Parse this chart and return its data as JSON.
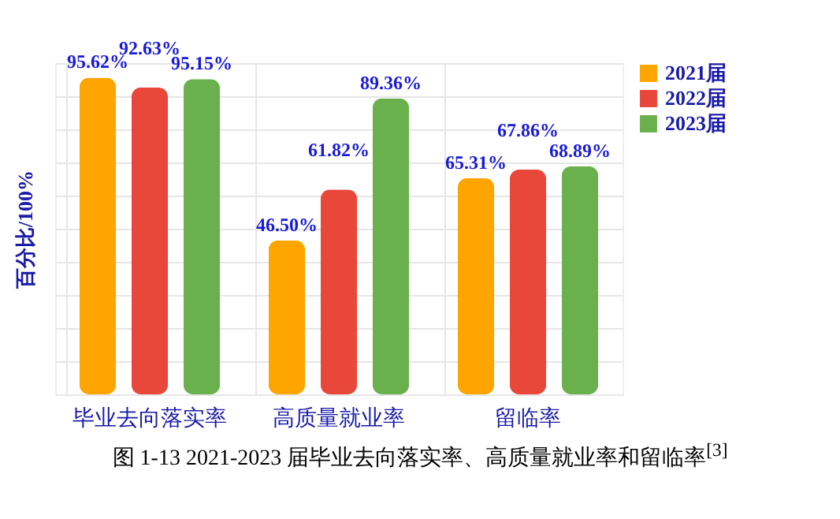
{
  "chart_data": {
    "type": "bar",
    "ylabel": "百分比/100%",
    "categories": [
      "毕业去向落实率",
      "高质量就业率",
      "留临率"
    ],
    "series": [
      {
        "name": "2021届",
        "color": "#ffa500",
        "values": [
          95.62,
          46.5,
          65.31
        ],
        "value_labels": [
          "95.62%",
          "46.50%",
          "65.31%"
        ]
      },
      {
        "name": "2022届",
        "color": "#e8473a",
        "values": [
          92.63,
          61.82,
          67.86
        ],
        "value_labels": [
          "92.63%",
          "61.82%",
          "67.86%"
        ]
      },
      {
        "name": "2023届",
        "color": "#6ab04c",
        "values": [
          95.15,
          89.36,
          68.89
        ],
        "value_labels": [
          "95.15%",
          "89.36%",
          "68.89%"
        ]
      }
    ],
    "ylim": [
      0,
      100
    ],
    "yticks": [
      {
        "value": 0,
        "label": null
      },
      {
        "value": 10,
        "label": null
      },
      {
        "value": 20,
        "label": null
      },
      {
        "value": 30,
        "label": null
      },
      {
        "value": 40,
        "label": null
      },
      {
        "value": 50,
        "label": null
      },
      {
        "value": 60,
        "label": null
      },
      {
        "value": 70,
        "label": null
      },
      {
        "value": 80,
        "label": null
      },
      {
        "value": 90,
        "label": null
      },
      {
        "value": 100,
        "label": null
      }
    ],
    "grid": true,
    "legend": "right",
    "annotations": [
      "图 1-13 2021-2023 届毕业去向落实率、高质量就业率和留临率$^{[3]}$"
    ]
  }
}
